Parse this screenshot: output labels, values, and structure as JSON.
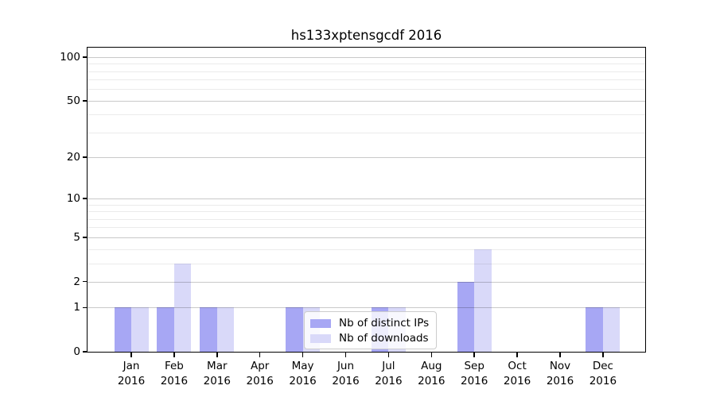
{
  "title": "hs133xptensgcdf 2016",
  "chart_data": {
    "type": "bar",
    "title": "hs133xptensgcdf 2016",
    "categories": [
      "Jan 2016",
      "Feb 2016",
      "Mar 2016",
      "Apr 2016",
      "May 2016",
      "Jun 2016",
      "Jul 2016",
      "Aug 2016",
      "Sep 2016",
      "Oct 2016",
      "Nov 2016",
      "Dec 2016"
    ],
    "series": [
      {
        "name": "Nb of distinct IPs",
        "color": "#a7a7f4",
        "values": [
          1,
          1,
          1,
          0,
          1,
          0,
          1,
          0,
          2,
          0,
          0,
          1
        ]
      },
      {
        "name": "Nb of downloads",
        "color": "#d9d9f9",
        "values": [
          1,
          3,
          1,
          0,
          1,
          0,
          1,
          0,
          4,
          0,
          0,
          1
        ]
      }
    ],
    "xlabel": "",
    "ylabel": "",
    "yscale": "log1p",
    "ylim": [
      0,
      115
    ],
    "y_ticks": [
      100,
      50,
      20,
      10,
      5,
      2,
      1,
      0
    ],
    "y_major_grid": [
      100,
      50,
      20,
      10,
      5,
      2,
      1
    ],
    "y_minor_grid": [
      90,
      80,
      70,
      60,
      40,
      30,
      9,
      8,
      7,
      6,
      4,
      3
    ],
    "grid": true,
    "legend_position": "lower center"
  },
  "legend": {
    "items": [
      {
        "label": "Nb of distinct IPs",
        "color": "#a7a7f4"
      },
      {
        "label": "Nb of downloads",
        "color": "#d9d9f9"
      }
    ]
  }
}
